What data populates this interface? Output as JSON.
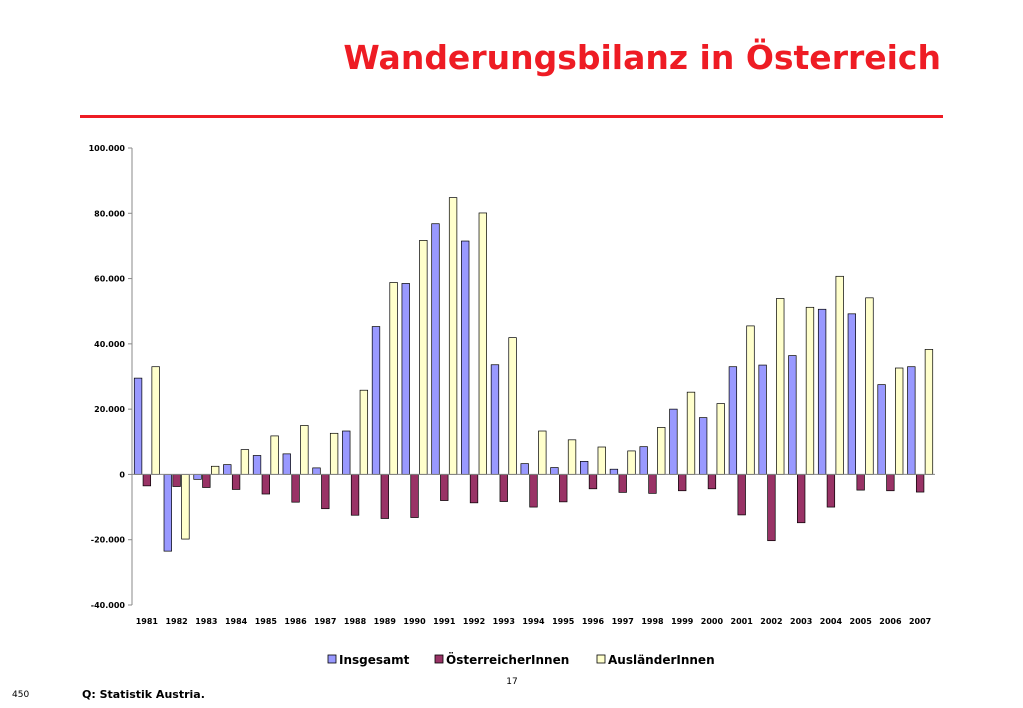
{
  "slide": {
    "title": "Wanderungsbilanz in Österreich",
    "page_number": "17",
    "side_number": "450",
    "source": "Q: Statistik Austria."
  },
  "colors": {
    "title": "#ee1c24",
    "rule": "#ee1c24"
  },
  "chart_data": {
    "type": "bar",
    "title": "",
    "xlabel": "",
    "ylabel": "",
    "ylim": [
      -40000,
      100000
    ],
    "yticks": [
      100000,
      80000,
      60000,
      40000,
      20000,
      0,
      -20000,
      -40000
    ],
    "ytick_labels": [
      "100.000",
      "80.000",
      "60.000",
      "40.000",
      "20.000",
      "0",
      "-20.000",
      "-40.000"
    ],
    "grid": false,
    "legend_position": "bottom",
    "categories": [
      "1981",
      "1982",
      "1983",
      "1984",
      "1985",
      "1986",
      "1987",
      "1988",
      "1989",
      "1990",
      "1991",
      "1992",
      "1993",
      "1994",
      "1995",
      "1996",
      "1997",
      "1998",
      "1999",
      "2000",
      "2001",
      "2002",
      "2003",
      "2004",
      "2005",
      "2006",
      "2007"
    ],
    "series": [
      {
        "name": "Insgesamt",
        "color": "#9999ff",
        "values": [
          29500,
          -23500,
          -1500,
          3000,
          5800,
          6300,
          2000,
          13300,
          45300,
          58500,
          76800,
          71500,
          33600,
          3300,
          2100,
          4000,
          1600,
          8500,
          20000,
          17400,
          33000,
          33500,
          36400,
          50600,
          49200,
          27500,
          33000
        ]
      },
      {
        "name": "ÖsterreicherInnen",
        "color": "#993366",
        "values": [
          -3500,
          -3700,
          -4000,
          -4600,
          -6000,
          -8500,
          -10500,
          -12500,
          -13500,
          -13200,
          -8000,
          -8700,
          -8300,
          -10000,
          -8400,
          -4400,
          -5500,
          -5800,
          -5000,
          -4400,
          -12400,
          -20300,
          -14800,
          -10000,
          -4800,
          -5000,
          -5400
        ]
      },
      {
        "name": "AusländerInnen",
        "color": "#ffffcc",
        "values": [
          33000,
          -19800,
          2500,
          7600,
          11800,
          15000,
          12600,
          25800,
          58800,
          71700,
          84800,
          80100,
          41900,
          13300,
          10600,
          8400,
          7200,
          14400,
          25200,
          21700,
          45500,
          53900,
          51200,
          60700,
          54100,
          32600,
          38300
        ]
      }
    ]
  }
}
